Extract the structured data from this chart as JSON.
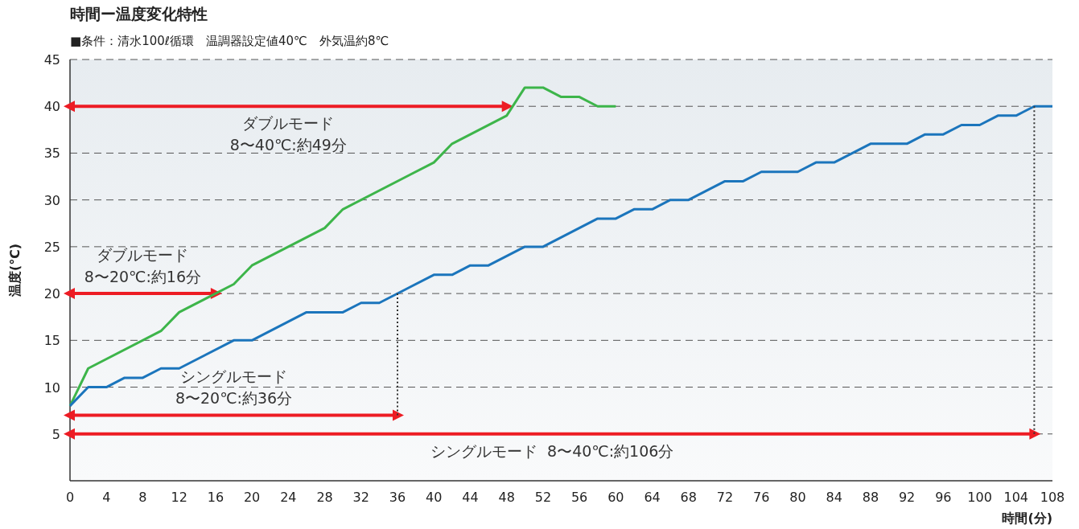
{
  "chart_data": {
    "type": "line",
    "title": "時間ー温度変化特性",
    "subtitle": "■条件：清水100ℓ循環　温調器設定値40℃　外気温約8℃",
    "xlabel": "時間(分)",
    "ylabel": "温度(℃)",
    "xlim": [
      0,
      108
    ],
    "ylim": [
      0,
      45
    ],
    "xticks": [
      0,
      4,
      8,
      12,
      16,
      20,
      24,
      28,
      32,
      36,
      40,
      44,
      48,
      52,
      56,
      60,
      64,
      68,
      72,
      76,
      80,
      84,
      88,
      92,
      96,
      100,
      104,
      108
    ],
    "yticks": [
      5,
      10,
      15,
      20,
      25,
      30,
      35,
      40,
      45
    ],
    "grid": "y",
    "series": [
      {
        "color": "#ed1c24",
        "marker": "triangle",
        "x": [
          0,
          48
        ],
        "values": [
          40,
          40
        ]
      },
      {
        "color": "#ed1c24",
        "marker": "triangle",
        "x": [
          0,
          16
        ],
        "values": [
          20,
          20
        ]
      },
      {
        "color": "#ed1c24",
        "marker": "triangle",
        "x": [
          0,
          36
        ],
        "values": [
          7,
          7
        ]
      },
      {
        "color": "#ed1c24",
        "marker": "triangle",
        "x": [
          0,
          106
        ],
        "values": [
          5,
          5
        ]
      },
      {
        "color": "#3db54a",
        "x": [
          0,
          2,
          10,
          12,
          18,
          20,
          28,
          30,
          40,
          42,
          48,
          50,
          52,
          54,
          56,
          58,
          60
        ],
        "values": [
          8,
          12,
          16,
          18,
          21,
          23,
          27,
          29,
          34,
          36,
          39,
          42,
          42,
          41,
          41,
          40,
          40
        ]
      },
      {
        "color": "#1b75bc",
        "x": [
          0,
          2,
          4,
          6,
          8,
          10,
          12,
          18,
          20,
          26,
          30,
          32,
          34,
          40,
          42,
          44,
          46,
          50,
          52,
          58,
          60,
          62,
          64,
          66,
          68,
          72,
          74,
          76,
          80,
          82,
          84,
          88,
          92,
          94,
          96,
          98,
          100,
          102,
          104,
          106,
          108
        ],
        "values": [
          8,
          10,
          10,
          11,
          11,
          12,
          12,
          15,
          15,
          18,
          18,
          19,
          19,
          22,
          22,
          23,
          23,
          25,
          25,
          28,
          28,
          29,
          29,
          30,
          30,
          32,
          32,
          33,
          33,
          34,
          34,
          36,
          36,
          37,
          37,
          38,
          38,
          39,
          39,
          40,
          40
        ]
      },
      {
        "color": "#333333",
        "line_style": "dotted",
        "x": [
          36,
          36
        ],
        "values": [
          20,
          7
        ]
      },
      {
        "color": "#333333",
        "line_style": "dotted",
        "x": [
          106,
          106
        ],
        "values": [
          40,
          5
        ]
      }
    ],
    "annotations": [
      {
        "text": "ダブルモード\n8〜40℃:約49分",
        "x": 24,
        "y": 40
      },
      {
        "text": "ダブルモード\n8〜20℃:約16分",
        "x": 8,
        "y": 20
      },
      {
        "text": "シングルモード\n8〜20℃:約36分",
        "x": 18,
        "y": 7
      },
      {
        "text": "シングルモード  8〜40℃:約106分",
        "x": 53,
        "y": 5
      }
    ]
  }
}
